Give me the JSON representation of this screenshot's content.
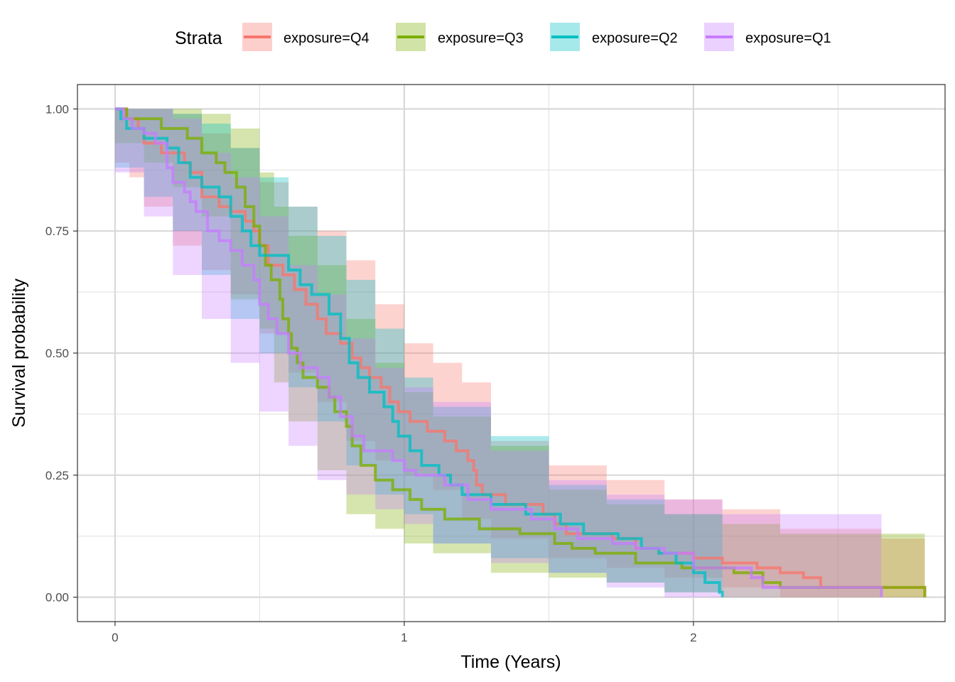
{
  "legend": {
    "title": "Strata",
    "position": "top"
  },
  "chart_data": {
    "type": "line",
    "subtype": "kaplan-meier step curves with confidence bands",
    "xlabel": "Time (Years)",
    "ylabel": "Survival probability",
    "xlim": [
      -0.13,
      2.87
    ],
    "ylim": [
      -0.05,
      1.05
    ],
    "x_ticks": [
      0,
      1,
      2
    ],
    "x_tick_labels": [
      "0",
      "1",
      "2"
    ],
    "y_ticks": [
      0,
      0.25,
      0.5,
      0.75,
      1
    ],
    "y_tick_labels": [
      "0.00",
      "0.25",
      "0.50",
      "0.75",
      "1.00"
    ],
    "grid": true,
    "series": [
      {
        "name": "exposure=Q4",
        "color": "#F8766D",
        "points": [
          [
            0,
            1
          ],
          [
            0.04,
            0.98
          ],
          [
            0.08,
            0.96
          ],
          [
            0.1,
            0.93
          ],
          [
            0.16,
            0.91
          ],
          [
            0.24,
            0.89
          ],
          [
            0.26,
            0.87
          ],
          [
            0.3,
            0.82
          ],
          [
            0.36,
            0.8
          ],
          [
            0.4,
            0.79
          ],
          [
            0.45,
            0.77
          ],
          [
            0.48,
            0.75
          ],
          [
            0.5,
            0.72
          ],
          [
            0.53,
            0.68
          ],
          [
            0.58,
            0.66
          ],
          [
            0.62,
            0.63
          ],
          [
            0.66,
            0.6
          ],
          [
            0.7,
            0.57
          ],
          [
            0.73,
            0.54
          ],
          [
            0.78,
            0.52
          ],
          [
            0.82,
            0.49
          ],
          [
            0.85,
            0.47
          ],
          [
            0.88,
            0.45
          ],
          [
            0.92,
            0.43
          ],
          [
            0.95,
            0.4
          ],
          [
            0.98,
            0.38
          ],
          [
            1.02,
            0.36
          ],
          [
            1.08,
            0.34
          ],
          [
            1.14,
            0.32
          ],
          [
            1.18,
            0.3
          ],
          [
            1.22,
            0.28
          ],
          [
            1.24,
            0.26
          ],
          [
            1.25,
            0.23
          ],
          [
            1.27,
            0.21
          ],
          [
            1.35,
            0.19
          ],
          [
            1.48,
            0.17
          ],
          [
            1.52,
            0.15
          ],
          [
            1.56,
            0.13
          ],
          [
            1.6,
            0.13
          ],
          [
            1.72,
            0.12
          ],
          [
            1.8,
            0.1
          ],
          [
            1.88,
            0.09
          ],
          [
            2.0,
            0.08
          ],
          [
            2.1,
            0.07
          ],
          [
            2.22,
            0.06
          ],
          [
            2.3,
            0.05
          ],
          [
            2.38,
            0.04
          ],
          [
            2.44,
            0.02
          ],
          [
            2.7,
            0.02
          ],
          [
            2.8,
            0.0
          ]
        ],
        "ci_band": [
          [
            0,
            1,
            1
          ],
          [
            0.05,
            0.89,
            1
          ],
          [
            0.1,
            0.86,
            1
          ],
          [
            0.2,
            0.8,
            0.99
          ],
          [
            0.3,
            0.72,
            0.95
          ],
          [
            0.4,
            0.67,
            0.92
          ],
          [
            0.5,
            0.62,
            0.85
          ],
          [
            0.6,
            0.54,
            0.8
          ],
          [
            0.7,
            0.46,
            0.75
          ],
          [
            0.8,
            0.4,
            0.69
          ],
          [
            0.9,
            0.32,
            0.6
          ],
          [
            1.0,
            0.28,
            0.52
          ],
          [
            1.1,
            0.25,
            0.48
          ],
          [
            1.2,
            0.22,
            0.44
          ],
          [
            1.3,
            0.16,
            0.32
          ],
          [
            1.5,
            0.12,
            0.27
          ],
          [
            1.7,
            0.08,
            0.24
          ],
          [
            1.9,
            0.06,
            0.2
          ],
          [
            2.1,
            0.04,
            0.18
          ],
          [
            2.3,
            0.02,
            0.14
          ],
          [
            2.65,
            0.0,
            0.12
          ],
          [
            2.8,
            0.0,
            0.12
          ]
        ]
      },
      {
        "name": "exposure=Q3",
        "color": "#7CAE00",
        "points": [
          [
            0,
            1
          ],
          [
            0.04,
            0.98
          ],
          [
            0.16,
            0.96
          ],
          [
            0.25,
            0.94
          ],
          [
            0.3,
            0.91
          ],
          [
            0.35,
            0.89
          ],
          [
            0.38,
            0.87
          ],
          [
            0.42,
            0.84
          ],
          [
            0.45,
            0.8
          ],
          [
            0.48,
            0.76
          ],
          [
            0.5,
            0.72
          ],
          [
            0.52,
            0.68
          ],
          [
            0.54,
            0.65
          ],
          [
            0.57,
            0.61
          ],
          [
            0.58,
            0.57
          ],
          [
            0.6,
            0.54
          ],
          [
            0.61,
            0.51
          ],
          [
            0.63,
            0.48
          ],
          [
            0.65,
            0.45
          ],
          [
            0.7,
            0.43
          ],
          [
            0.74,
            0.41
          ],
          [
            0.76,
            0.38
          ],
          [
            0.8,
            0.35
          ],
          [
            0.82,
            0.31
          ],
          [
            0.85,
            0.27
          ],
          [
            0.9,
            0.24
          ],
          [
            0.96,
            0.22
          ],
          [
            1.02,
            0.2
          ],
          [
            1.06,
            0.18
          ],
          [
            1.14,
            0.16
          ],
          [
            1.26,
            0.14
          ],
          [
            1.4,
            0.13
          ],
          [
            1.52,
            0.11
          ],
          [
            1.58,
            0.1
          ],
          [
            1.66,
            0.09
          ],
          [
            1.8,
            0.07
          ],
          [
            1.96,
            0.06
          ],
          [
            2.14,
            0.05
          ],
          [
            2.24,
            0.03
          ],
          [
            2.3,
            0.02
          ],
          [
            2.8,
            0.0
          ]
        ],
        "ci_band": [
          [
            0,
            1,
            1
          ],
          [
            0.1,
            0.93,
            1
          ],
          [
            0.2,
            0.89,
            1
          ],
          [
            0.3,
            0.84,
            0.99
          ],
          [
            0.4,
            0.78,
            0.96
          ],
          [
            0.5,
            0.61,
            0.87
          ],
          [
            0.55,
            0.55,
            0.8
          ],
          [
            0.6,
            0.44,
            0.74
          ],
          [
            0.7,
            0.36,
            0.68
          ],
          [
            0.8,
            0.26,
            0.57
          ],
          [
            0.9,
            0.17,
            0.48
          ],
          [
            1.0,
            0.14,
            0.42
          ],
          [
            1.1,
            0.11,
            0.37
          ],
          [
            1.3,
            0.09,
            0.31
          ],
          [
            1.5,
            0.05,
            0.22
          ],
          [
            1.7,
            0.04,
            0.19
          ],
          [
            1.9,
            0.03,
            0.17
          ],
          [
            2.1,
            0.01,
            0.15
          ],
          [
            2.3,
            0.0,
            0.13
          ],
          [
            2.8,
            0.0,
            0.12
          ]
        ]
      },
      {
        "name": "exposure=Q2",
        "color": "#00BFC4",
        "points": [
          [
            0,
            1
          ],
          [
            0.02,
            0.98
          ],
          [
            0.04,
            0.96
          ],
          [
            0.1,
            0.94
          ],
          [
            0.18,
            0.92
          ],
          [
            0.22,
            0.89
          ],
          [
            0.26,
            0.86
          ],
          [
            0.3,
            0.84
          ],
          [
            0.36,
            0.82
          ],
          [
            0.4,
            0.78
          ],
          [
            0.44,
            0.75
          ],
          [
            0.47,
            0.72
          ],
          [
            0.5,
            0.7
          ],
          [
            0.6,
            0.67
          ],
          [
            0.64,
            0.64
          ],
          [
            0.68,
            0.62
          ],
          [
            0.74,
            0.58
          ],
          [
            0.78,
            0.53
          ],
          [
            0.81,
            0.48
          ],
          [
            0.84,
            0.45
          ],
          [
            0.88,
            0.42
          ],
          [
            0.93,
            0.39
          ],
          [
            0.96,
            0.36
          ],
          [
            0.98,
            0.33
          ],
          [
            1.02,
            0.3
          ],
          [
            1.06,
            0.27
          ],
          [
            1.12,
            0.25
          ],
          [
            1.16,
            0.23
          ],
          [
            1.2,
            0.21
          ],
          [
            1.3,
            0.19
          ],
          [
            1.42,
            0.17
          ],
          [
            1.54,
            0.15
          ],
          [
            1.62,
            0.13
          ],
          [
            1.74,
            0.12
          ],
          [
            1.82,
            0.1
          ],
          [
            1.88,
            0.09
          ],
          [
            1.94,
            0.07
          ],
          [
            2.0,
            0.05
          ],
          [
            2.04,
            0.03
          ],
          [
            2.09,
            0.01
          ],
          [
            2.1,
            0.0
          ]
        ],
        "ci_band": [
          [
            0,
            1,
            1
          ],
          [
            0.1,
            0.88,
            1
          ],
          [
            0.2,
            0.82,
            0.99
          ],
          [
            0.3,
            0.75,
            0.97
          ],
          [
            0.4,
            0.66,
            0.92
          ],
          [
            0.5,
            0.57,
            0.86
          ],
          [
            0.6,
            0.5,
            0.8
          ],
          [
            0.7,
            0.43,
            0.74
          ],
          [
            0.8,
            0.36,
            0.65
          ],
          [
            0.9,
            0.27,
            0.55
          ],
          [
            1.0,
            0.21,
            0.45
          ],
          [
            1.1,
            0.17,
            0.39
          ],
          [
            1.3,
            0.11,
            0.33
          ],
          [
            1.5,
            0.08,
            0.23
          ],
          [
            1.7,
            0.05,
            0.2
          ],
          [
            1.9,
            0.03,
            0.17
          ],
          [
            2.1,
            0.01,
            0.13
          ]
        ]
      },
      {
        "name": "exposure=Q1",
        "color": "#C77CFF",
        "points": [
          [
            0,
            1
          ],
          [
            0.03,
            0.98
          ],
          [
            0.06,
            0.96
          ],
          [
            0.1,
            0.95
          ],
          [
            0.14,
            0.93
          ],
          [
            0.18,
            0.88
          ],
          [
            0.2,
            0.85
          ],
          [
            0.24,
            0.83
          ],
          [
            0.26,
            0.81
          ],
          [
            0.28,
            0.79
          ],
          [
            0.32,
            0.75
          ],
          [
            0.36,
            0.73
          ],
          [
            0.4,
            0.71
          ],
          [
            0.44,
            0.68
          ],
          [
            0.48,
            0.65
          ],
          [
            0.5,
            0.6
          ],
          [
            0.53,
            0.57
          ],
          [
            0.56,
            0.54
          ],
          [
            0.6,
            0.5
          ],
          [
            0.64,
            0.47
          ],
          [
            0.7,
            0.45
          ],
          [
            0.74,
            0.41
          ],
          [
            0.78,
            0.37
          ],
          [
            0.82,
            0.33
          ],
          [
            0.86,
            0.3
          ],
          [
            0.9,
            0.3
          ],
          [
            0.96,
            0.28
          ],
          [
            1.0,
            0.26
          ],
          [
            1.04,
            0.25
          ],
          [
            1.14,
            0.23
          ],
          [
            1.22,
            0.2
          ],
          [
            1.3,
            0.18
          ],
          [
            1.44,
            0.16
          ],
          [
            1.52,
            0.14
          ],
          [
            1.6,
            0.12
          ],
          [
            1.72,
            0.11
          ],
          [
            1.8,
            0.1
          ],
          [
            1.9,
            0.09
          ],
          [
            2.0,
            0.06
          ],
          [
            2.2,
            0.04
          ],
          [
            2.24,
            0.02
          ],
          [
            2.6,
            0.02
          ],
          [
            2.65,
            0.0
          ]
        ],
        "ci_band": [
          [
            0,
            1,
            1
          ],
          [
            0.1,
            0.87,
            1
          ],
          [
            0.2,
            0.78,
            0.98
          ],
          [
            0.3,
            0.66,
            0.91
          ],
          [
            0.4,
            0.57,
            0.86
          ],
          [
            0.5,
            0.48,
            0.78
          ],
          [
            0.6,
            0.38,
            0.68
          ],
          [
            0.7,
            0.31,
            0.62
          ],
          [
            0.8,
            0.24,
            0.53
          ],
          [
            0.9,
            0.21,
            0.47
          ],
          [
            1.0,
            0.18,
            0.43
          ],
          [
            1.1,
            0.15,
            0.4
          ],
          [
            1.3,
            0.11,
            0.3
          ],
          [
            1.5,
            0.07,
            0.24
          ],
          [
            1.7,
            0.05,
            0.21
          ],
          [
            1.9,
            0.02,
            0.2
          ],
          [
            2.1,
            0.0,
            0.17
          ],
          [
            2.65,
            0.0,
            0.12
          ]
        ]
      }
    ]
  }
}
